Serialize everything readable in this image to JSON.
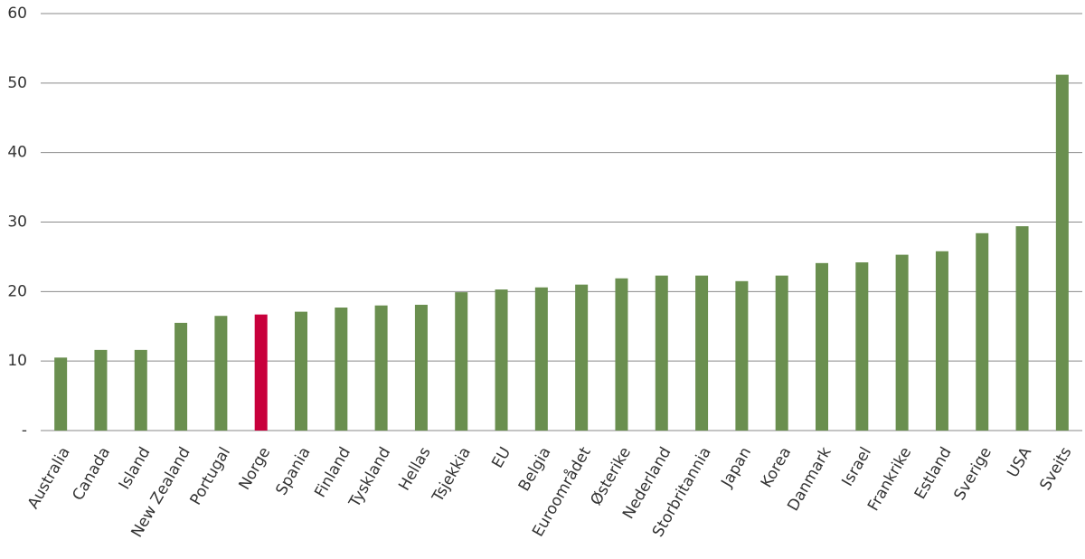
{
  "chart_data": {
    "type": "bar",
    "categories": [
      "Australia",
      "Canada",
      "Island",
      "New Zealand",
      "Portugal",
      "Norge",
      "Spania",
      "Finland",
      "Tyskland",
      "Hellas",
      "Tsjekkia",
      "EU",
      "Belgia",
      "Euroområdet",
      "Østerike",
      "Nederland",
      "Storbritannia",
      "Japan",
      "Korea",
      "Danmark",
      "Israel",
      "Frankrike",
      "Estland",
      "Sverige",
      "USA",
      "Sveits"
    ],
    "values": [
      10.5,
      11.6,
      11.6,
      15.5,
      16.5,
      16.7,
      17.1,
      17.7,
      18.0,
      18.1,
      19.9,
      20.3,
      20.6,
      21.0,
      21.9,
      22.3,
      22.3,
      21.5,
      22.3,
      24.1,
      24.2,
      25.3,
      25.8,
      28.4,
      29.4,
      51.2
    ],
    "colors": [
      "#6a8f4f",
      "#6a8f4f",
      "#6a8f4f",
      "#6a8f4f",
      "#6a8f4f",
      "#c8003c",
      "#6a8f4f",
      "#6a8f4f",
      "#6a8f4f",
      "#6a8f4f",
      "#6a8f4f",
      "#6a8f4f",
      "#6a8f4f",
      "#6a8f4f",
      "#6a8f4f",
      "#6a8f4f",
      "#6a8f4f",
      "#6a8f4f",
      "#6a8f4f",
      "#6a8f4f",
      "#6a8f4f",
      "#6a8f4f",
      "#6a8f4f",
      "#6a8f4f",
      "#6a8f4f",
      "#6a8f4f"
    ],
    "ylim": [
      0,
      60
    ],
    "yticks": [
      {
        "value": 0,
        "label": "-"
      },
      10,
      20,
      30,
      40,
      50,
      60
    ],
    "grid": true
  }
}
